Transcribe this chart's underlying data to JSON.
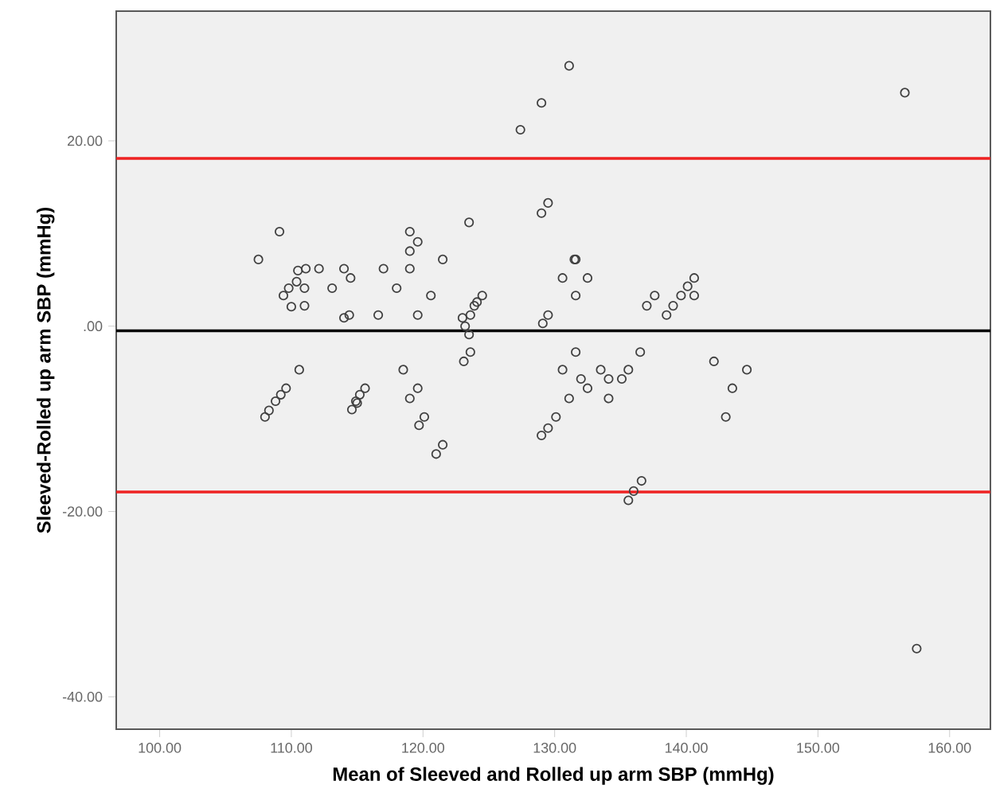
{
  "chart_data": {
    "type": "scatter",
    "xlabel": "Mean of Sleeved and Rolled up arm SBP (mmHg)",
    "ylabel": "Sleeved-Rolled up arm SBP (mmHg)",
    "xlim": [
      96.7,
      163.1
    ],
    "ylim": [
      -43.5,
      34
    ],
    "xticks": [
      {
        "value": 100,
        "label": "100.00"
      },
      {
        "value": 110,
        "label": "110.00"
      },
      {
        "value": 120,
        "label": "120.00"
      },
      {
        "value": 130,
        "label": "130.00"
      },
      {
        "value": 140,
        "label": "140.00"
      },
      {
        "value": 150,
        "label": "150.00"
      },
      {
        "value": 160,
        "label": "160.00"
      }
    ],
    "yticks": [
      {
        "value": -40,
        "label": "-40.00"
      },
      {
        "value": -20,
        "label": "-20.00"
      },
      {
        "value": 0,
        "label": ".00"
      },
      {
        "value": 20,
        "label": "20.00"
      }
    ],
    "grid": false,
    "marker": "circle",
    "ref_lines": [
      {
        "axis": "y",
        "value": 18.1,
        "color": "#ee2222"
      },
      {
        "axis": "y",
        "value": -0.5,
        "color": "#000000"
      },
      {
        "axis": "y",
        "value": -17.9,
        "color": "#ee2222"
      }
    ],
    "series": [
      {
        "color": "#404040",
        "x": [
          107.5,
          109.1,
          109.4,
          109.8,
          110.0,
          110.4,
          110.5,
          111.0,
          111.0,
          111.1,
          112.1,
          113.1,
          114.0,
          114.5,
          114.0,
          114.4,
          116.6,
          117.0,
          118.0,
          119.0,
          119.6,
          119.0,
          119.0,
          119.6,
          120.6,
          121.5,
          123.5,
          123.0,
          123.2,
          123.5,
          123.6,
          123.9,
          124.1,
          124.5,
          127.4,
          129.0,
          131.1,
          129.0,
          129.5,
          130.6,
          131.6,
          131.6,
          131.5,
          132.5,
          129.1,
          129.5,
          137.0,
          137.6,
          138.5,
          139.0,
          139.6,
          140.1,
          140.6,
          140.6,
          156.6,
          110.6,
          109.6,
          109.2,
          108.8,
          115.6,
          115.2,
          114.9,
          118.5,
          119.6,
          119.0,
          123.1,
          123.6,
          108.0,
          108.3,
          114.6,
          115.0,
          119.7,
          120.1,
          121.0,
          121.5,
          131.6,
          130.6,
          132.0,
          132.5,
          131.1,
          133.5,
          134.1,
          134.1,
          135.1,
          135.6,
          136.5,
          142.1,
          143.5,
          144.6,
          143.0,
          129.0,
          129.5,
          130.1,
          135.6,
          136.0,
          136.6,
          157.5
        ],
        "values": [
          7.2,
          10.2,
          3.3,
          4.1,
          2.1,
          4.8,
          6.0,
          4.1,
          2.2,
          6.2,
          6.2,
          4.1,
          6.2,
          5.2,
          0.9,
          1.2,
          1.2,
          6.2,
          4.1,
          10.2,
          9.1,
          8.1,
          6.2,
          1.2,
          3.3,
          7.2,
          11.2,
          0.9,
          0.0,
          -0.9,
          1.2,
          2.2,
          2.6,
          3.3,
          21.2,
          24.1,
          28.1,
          12.2,
          13.3,
          5.2,
          7.2,
          3.3,
          7.2,
          5.2,
          0.3,
          1.2,
          2.2,
          3.3,
          1.2,
          2.2,
          3.3,
          4.3,
          5.2,
          3.3,
          25.2,
          -4.7,
          -6.7,
          -7.4,
          -8.1,
          -6.7,
          -7.4,
          -8.1,
          -4.7,
          -6.7,
          -7.8,
          -3.8,
          -2.8,
          -9.8,
          -9.1,
          -9.0,
          -8.3,
          -10.7,
          -9.8,
          -13.8,
          -12.8,
          -2.8,
          -4.7,
          -5.7,
          -6.7,
          -7.8,
          -4.7,
          -5.7,
          -7.8,
          -5.7,
          -4.7,
          -2.8,
          -3.8,
          -6.7,
          -4.7,
          -9.8,
          -11.8,
          -11.0,
          -9.8,
          -18.8,
          -17.8,
          -16.7,
          -34.8
        ]
      }
    ]
  }
}
